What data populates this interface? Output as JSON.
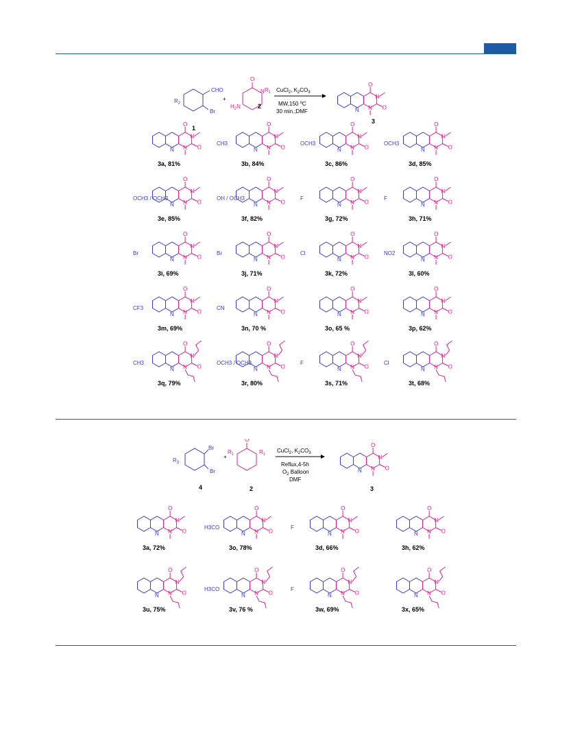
{
  "page": {
    "accent_color": "#1f5aa6",
    "aryl_color": "#3a3ad6",
    "uracil_color": "#e0208a"
  },
  "scheme1": {
    "reactant1_label": "1",
    "reactant1_groups": {
      "r": "R",
      "r_sub": "2",
      "cho": "CHO",
      "br": "Br"
    },
    "reactant2_label": "2",
    "reactant2_groups": {
      "o": "O",
      "n": "N",
      "r1": "R",
      "r1_sub": "1",
      "h2n": "H",
      "h2n_sub": "2",
      "h2n_tail": "N"
    },
    "plus": "+",
    "conditions_top": "CuCl",
    "conditions_top_sub": "2",
    "conditions_top_tail": ", K",
    "conditions_top_sub2": "2",
    "conditions_top_tail2": "CO",
    "conditions_top_sub3": "3",
    "conditions_line2": "MW,150 ",
    "conditions_line2_sup": "o",
    "conditions_line2_tail": "C",
    "conditions_line3": "30 min.;DMF",
    "product_label": "3",
    "products": [
      {
        "label": "3a, 81%",
        "sub": ""
      },
      {
        "label": "3b, 84%",
        "sub": "CH3"
      },
      {
        "label": "3c, 86%",
        "sub": "OCH3"
      },
      {
        "label": "3d, 85%",
        "sub": "OCH3"
      },
      {
        "label": "3e, 85%",
        "sub": "OCH3 / OCH3"
      },
      {
        "label": "3f, 82%",
        "sub": "OH / OCH3"
      },
      {
        "label": "3g, 72%",
        "sub": "F"
      },
      {
        "label": "3h, 71%",
        "sub": "F"
      },
      {
        "label": "3i, 69%",
        "sub": "Br"
      },
      {
        "label": "3j, 71%",
        "sub": "Br"
      },
      {
        "label": "3k, 72%",
        "sub": "Cl"
      },
      {
        "label": "3l, 60%",
        "sub": "NO2"
      },
      {
        "label": "3m, 69%",
        "sub": "CF3"
      },
      {
        "label": "3n, 70 %",
        "sub": "CN"
      },
      {
        "label": "3o, 65 %",
        "sub": ""
      },
      {
        "label": "3p, 62%",
        "sub": ""
      },
      {
        "label": "3q, 79%",
        "sub": "CH3"
      },
      {
        "label": "3r, 80%",
        "sub": "OCH3 / OCH3"
      },
      {
        "label": "3s, 71%",
        "sub": "F"
      },
      {
        "label": "3t, 68%",
        "sub": "Cl"
      }
    ]
  },
  "scheme2": {
    "reactant1_label": "4",
    "reactant1_groups": {
      "r": "R",
      "r_sub": "3",
      "br1": "Br",
      "br2": "Br"
    },
    "reactant2_label": "2",
    "plus": "+",
    "conditions_top": "CuCl",
    "conditions_top_sub": "2",
    "conditions_top_tail": ", K",
    "conditions_top_sub2": "2",
    "conditions_top_tail2": "CO",
    "conditions_top_sub3": "3",
    "conditions_line2": "Reflux,4-5h",
    "conditions_line3": "O",
    "conditions_line3_sub": "2",
    "conditions_line3_tail": " Balloon",
    "conditions_line4": "DMF",
    "product_label": "3",
    "products": [
      {
        "label": "3a, 72%",
        "sub": ""
      },
      {
        "label": "3o, 78%",
        "sub": "H3CO"
      },
      {
        "label": "3d, 66%",
        "sub": "F"
      },
      {
        "label": "3h, 62%",
        "sub": ""
      },
      {
        "label": "3u, 75%",
        "sub": ""
      },
      {
        "label": "3v, 76 %",
        "sub": "H3CO"
      },
      {
        "label": "3w, 69%",
        "sub": "F"
      },
      {
        "label": "3x, 65%",
        "sub": ""
      }
    ]
  },
  "atoms": {
    "O": "O",
    "N": "N",
    "R1": "R",
    "R1sub": "1"
  }
}
